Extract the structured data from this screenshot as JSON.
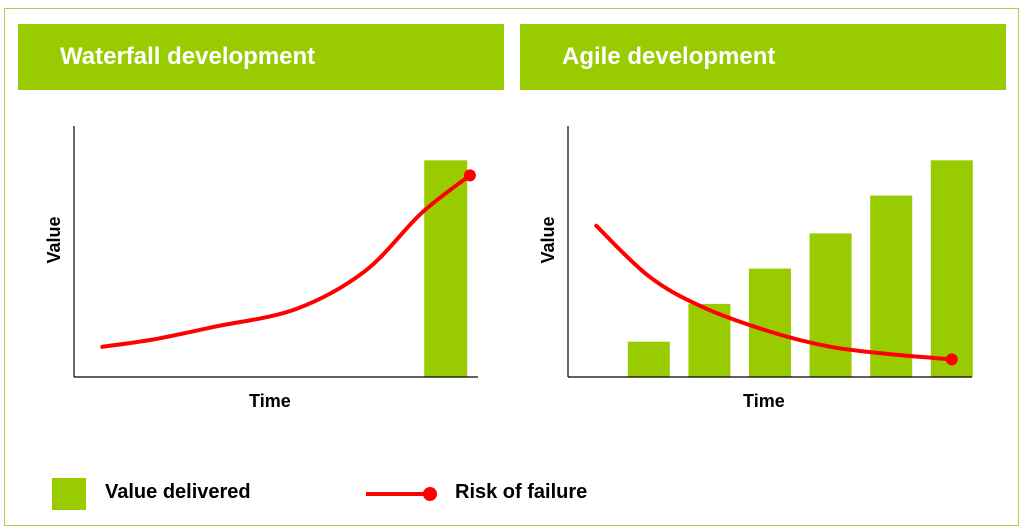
{
  "panels": {
    "left_title": "Waterfall development",
    "right_title": "Agile development"
  },
  "legend": {
    "value_label": "Value delivered",
    "risk_label": "Risk of failure"
  },
  "colors": {
    "bar": "#99cc00",
    "risk_line": "#ff0000",
    "header_bg": "#99cc00",
    "frame": "#a9d24a"
  },
  "chart_data": [
    {
      "type": "bar",
      "title": "Waterfall development",
      "xlabel": "Time",
      "ylabel": "Value",
      "ylim": [
        0,
        1
      ],
      "series": [
        {
          "name": "Value delivered",
          "kind": "bar",
          "x": [
            0.92
          ],
          "values": [
            0.86
          ]
        },
        {
          "name": "Risk of failure",
          "kind": "line",
          "x": [
            0.07,
            0.2,
            0.35,
            0.55,
            0.72,
            0.86,
            0.98
          ],
          "values": [
            0.12,
            0.15,
            0.2,
            0.27,
            0.42,
            0.65,
            0.8
          ],
          "end_marker": true
        }
      ]
    },
    {
      "type": "bar",
      "title": "Agile development",
      "xlabel": "Time",
      "ylabel": "Value",
      "ylim": [
        0,
        1
      ],
      "series": [
        {
          "name": "Value delivered",
          "kind": "bar",
          "x": [
            0.2,
            0.35,
            0.5,
            0.65,
            0.8,
            0.95
          ],
          "values": [
            0.14,
            0.29,
            0.43,
            0.57,
            0.72,
            0.86
          ]
        },
        {
          "name": "Risk of failure",
          "kind": "line",
          "x": [
            0.07,
            0.2,
            0.33,
            0.5,
            0.65,
            0.8,
            0.95
          ],
          "values": [
            0.6,
            0.4,
            0.28,
            0.18,
            0.12,
            0.09,
            0.07
          ],
          "end_marker": true
        }
      ]
    }
  ]
}
